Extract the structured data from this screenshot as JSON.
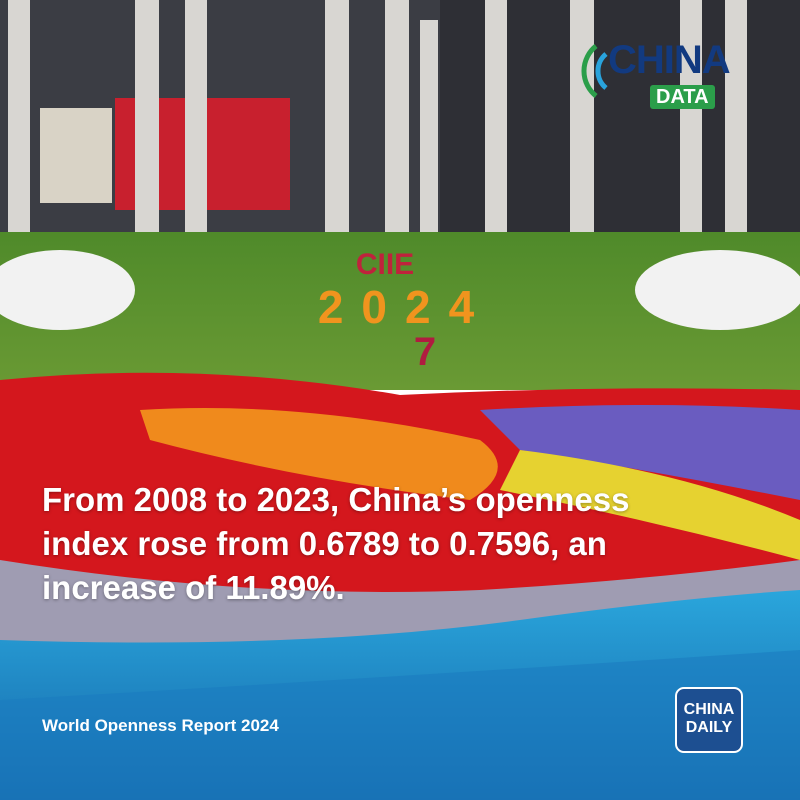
{
  "logo": {
    "line1": "CHINA",
    "line2": "DATA"
  },
  "scene": {
    "flower_text": [
      "CIIE",
      "2024",
      "7"
    ]
  },
  "headline": "From 2008 to 2023, China’s openness index rose from 0.6789 to 0.7596, an increase of 11.89%.",
  "source": "World Openness Report 2024",
  "brand": {
    "line1": "CHINA",
    "line2": "DAILY"
  }
}
